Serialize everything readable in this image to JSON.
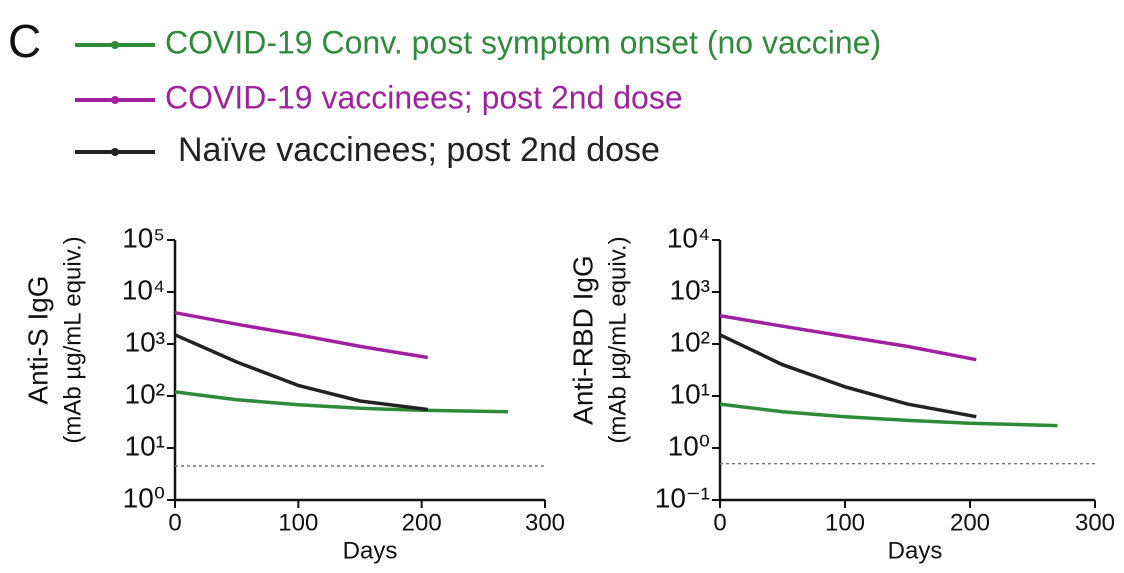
{
  "panel_label": "C",
  "chart_data": [
    {
      "type": "line",
      "log_y": true,
      "ylabel": [
        "Anti-S IgG",
        "(mAb µg/mL equiv.)"
      ],
      "xlabel": "Days",
      "xlim": [
        0,
        300
      ],
      "xticks": [
        0,
        100,
        200,
        300
      ],
      "ylim": [
        1,
        100000
      ],
      "yticks": [
        {
          "value": 1,
          "label": "10⁰"
        },
        {
          "value": 10,
          "label": "10¹"
        },
        {
          "value": 100,
          "label": "10²"
        },
        {
          "value": 1000,
          "label": "10³"
        },
        {
          "value": 10000,
          "label": "10⁴"
        },
        {
          "value": 100000,
          "label": "10⁵"
        }
      ],
      "reference_line": 4.5,
      "series": [
        {
          "name": "COVID-19 Conv. post symptom onset (no vaccine)",
          "color": "#2e8b3a",
          "x": [
            0,
            50,
            100,
            150,
            200,
            270
          ],
          "values": [
            120,
            85,
            68,
            58,
            53,
            50
          ]
        },
        {
          "name": "COVID-19 vaccinees; post 2nd dose",
          "color": "#a020a0",
          "x": [
            0,
            50,
            100,
            150,
            205
          ],
          "values": [
            4000,
            2400,
            1500,
            900,
            550
          ]
        },
        {
          "name": "Naïve vaccinees; post 2nd dose",
          "color": "#222222",
          "x": [
            0,
            50,
            100,
            150,
            205
          ],
          "values": [
            1500,
            450,
            160,
            80,
            55
          ]
        }
      ]
    },
    {
      "type": "line",
      "log_y": true,
      "ylabel": [
        "Anti-RBD IgG",
        "(mAb µg/mL equiv.)"
      ],
      "xlabel": "Days",
      "xlim": [
        0,
        300
      ],
      "xticks": [
        0,
        100,
        200,
        300
      ],
      "ylim": [
        0.1,
        10000
      ],
      "yticks": [
        {
          "value": 0.1,
          "label": "10⁻¹"
        },
        {
          "value": 1,
          "label": "10⁰"
        },
        {
          "value": 10,
          "label": "10¹"
        },
        {
          "value": 100,
          "label": "10²"
        },
        {
          "value": 1000,
          "label": "10³"
        },
        {
          "value": 10000,
          "label": "10⁴"
        }
      ],
      "reference_line": 0.5,
      "series": [
        {
          "color": "#2e8b3a",
          "x": [
            0,
            50,
            100,
            150,
            200,
            270
          ],
          "values": [
            7,
            5,
            4,
            3.4,
            3,
            2.7
          ]
        },
        {
          "color": "#a020a0",
          "x": [
            0,
            50,
            100,
            150,
            205
          ],
          "values": [
            350,
            220,
            140,
            90,
            50
          ]
        },
        {
          "color": "#222222",
          "x": [
            0,
            50,
            100,
            150,
            205
          ],
          "values": [
            150,
            40,
            15,
            7,
            4
          ]
        }
      ]
    }
  ]
}
